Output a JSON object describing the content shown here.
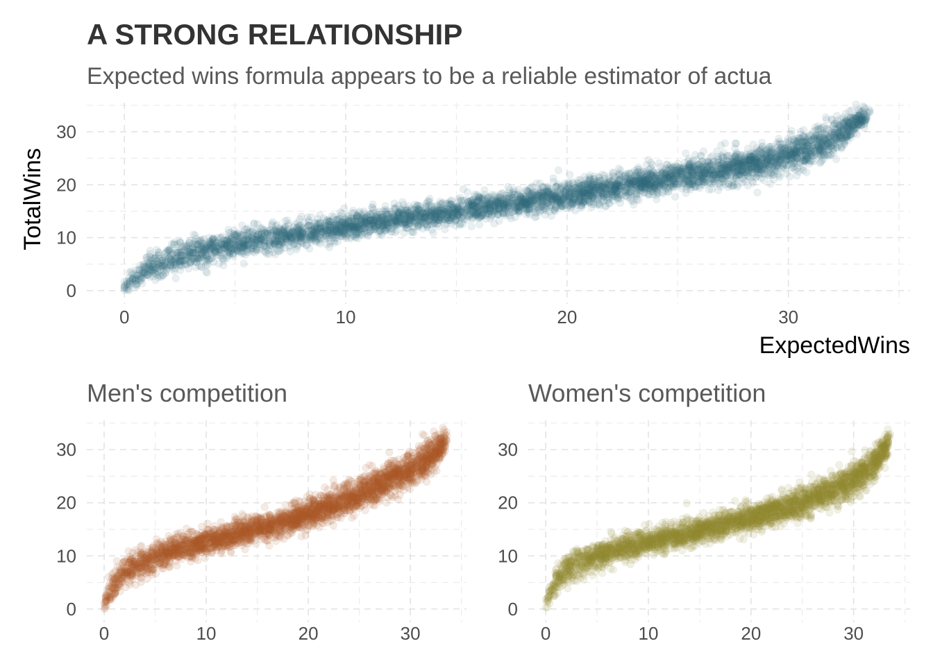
{
  "title": "A STRONG RELATIONSHIP",
  "subtitle": "Expected wins formula appears to be a reliable estimator of actua",
  "chart_data": [
    {
      "type": "scatter",
      "title": "",
      "xlabel": "ExpectedWins",
      "ylabel": "TotalWins",
      "xlim": [
        -1.7,
        35.5
      ],
      "ylim": [
        -2.5,
        35.5
      ],
      "x_ticks": [
        "0",
        "10",
        "20",
        "30"
      ],
      "y_ticks": [
        "0",
        "10",
        "20",
        "30"
      ],
      "grid": true,
      "color": "#336b7f",
      "point_alpha": 0.1,
      "series": [
        {
          "x": [
            0,
            0.5,
            1,
            2,
            3,
            4,
            5,
            6,
            8,
            10,
            12,
            14,
            16,
            18,
            20,
            22,
            24,
            26,
            28,
            30,
            32,
            33.5
          ],
          "y": [
            0.5,
            2.5,
            4,
            5.8,
            7,
            8,
            8.8,
            9.6,
            10.8,
            12,
            13.2,
            14.4,
            15.6,
            16.8,
            18,
            19.4,
            20.8,
            22.2,
            23.7,
            25.5,
            28.5,
            33
          ],
          "spread": [
            1.0,
            1.6,
            2.0,
            2.4,
            2.4,
            2.4,
            2.4,
            2.3,
            2.2,
            2.2,
            2.2,
            2.2,
            2.2,
            2.2,
            2.3,
            2.4,
            2.5,
            2.6,
            2.7,
            2.8,
            3.0,
            1.5
          ]
        }
      ]
    },
    {
      "type": "scatter",
      "title": "Men's competition",
      "xlabel": "",
      "ylabel": "",
      "xlim": [
        -1.7,
        35.5
      ],
      "ylim": [
        -2.5,
        35.5
      ],
      "x_ticks": [
        "0",
        "10",
        "20",
        "30"
      ],
      "y_ticks": [
        "0",
        "10",
        "20",
        "30"
      ],
      "grid": true,
      "color": "#b0582c",
      "point_alpha": 0.12,
      "series": [
        {
          "x": [
            0,
            0.5,
            1,
            2,
            3,
            4,
            5,
            6,
            8,
            10,
            12,
            14,
            16,
            18,
            20,
            22,
            24,
            26,
            28,
            30,
            32,
            33.5
          ],
          "y": [
            1,
            3,
            4.8,
            6.8,
            8,
            9,
            9.8,
            10.5,
            11.6,
            12.6,
            13.6,
            14.6,
            15.6,
            16.6,
            17.8,
            19.2,
            20.8,
            22.5,
            24.3,
            26.2,
            29,
            31.5
          ],
          "spread": [
            1.2,
            1.8,
            2.2,
            2.6,
            2.6,
            2.5,
            2.4,
            2.3,
            2.2,
            2.2,
            2.2,
            2.2,
            2.2,
            2.2,
            2.3,
            2.4,
            2.5,
            2.6,
            2.8,
            3.0,
            3.0,
            1.8
          ]
        }
      ]
    },
    {
      "type": "scatter",
      "title": "Women's competition",
      "xlabel": "",
      "ylabel": "",
      "xlim": [
        -1.7,
        35.5
      ],
      "ylim": [
        -2.5,
        35.5
      ],
      "x_ticks": [
        "0",
        "10",
        "20",
        "30"
      ],
      "y_ticks": [
        "0",
        "10",
        "20",
        "30"
      ],
      "grid": true,
      "color": "#918a33",
      "point_alpha": 0.12,
      "series": [
        {
          "x": [
            0,
            0.5,
            1,
            2,
            3,
            4,
            5,
            6,
            8,
            10,
            12,
            14,
            16,
            18,
            20,
            22,
            24,
            26,
            28,
            30,
            32,
            33.5
          ],
          "y": [
            1,
            3.5,
            5.2,
            7.2,
            8.4,
            9.3,
            10,
            10.7,
            11.6,
            12.5,
            13.4,
            14.3,
            15.2,
            16.2,
            17.2,
            18.3,
            19.5,
            20.8,
            22.3,
            24.2,
            27.5,
            31.5
          ],
          "spread": [
            1.2,
            1.8,
            2.2,
            2.5,
            2.5,
            2.4,
            2.3,
            2.2,
            2.2,
            2.2,
            2.2,
            2.2,
            2.2,
            2.2,
            2.3,
            2.3,
            2.4,
            2.5,
            2.6,
            2.8,
            2.8,
            1.8
          ]
        }
      ]
    }
  ]
}
